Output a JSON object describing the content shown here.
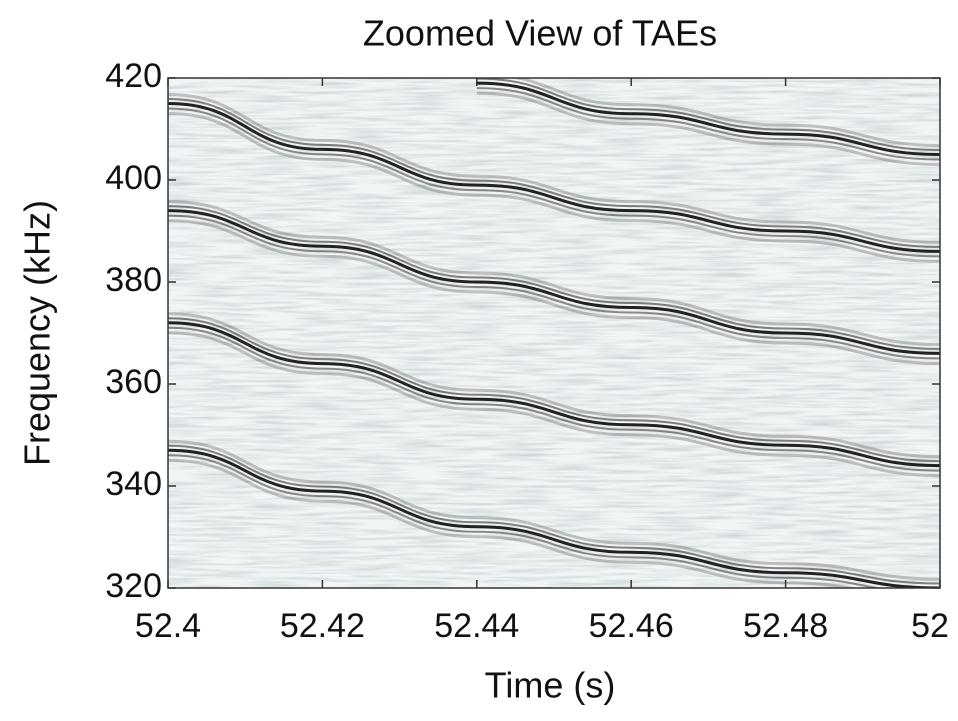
{
  "chart_data": {
    "type": "line",
    "title": "Zoomed View of TAEs",
    "x_label": "Time (s)",
    "y_label": "Frequency (kHz)",
    "x": [
      52.4,
      52.42,
      52.44,
      52.46,
      52.48,
      52.5
    ],
    "series": [
      {
        "color": "#222222",
        "values": [
          347,
          339,
          332,
          327,
          323,
          320
        ]
      },
      {
        "color": "#222222",
        "values": [
          372,
          364,
          357,
          352,
          348,
          344
        ]
      },
      {
        "color": "#222222",
        "values": [
          394,
          387,
          380,
          375,
          370,
          366
        ]
      },
      {
        "color": "#222222",
        "values": [
          415,
          406,
          399,
          394,
          390,
          386
        ]
      },
      {
        "color": "#222222",
        "values": [
          null,
          null,
          419,
          413,
          409,
          405
        ]
      }
    ],
    "xlim": [
      52.4,
      52.5
    ],
    "ylim": [
      320,
      420
    ],
    "xticks": [
      52.4,
      52.42,
      52.44,
      52.46,
      52.48,
      {
        "value": 52.5,
        "label": "52"
      }
    ],
    "yticks": [
      320,
      340,
      360,
      380,
      400,
      420
    ]
  }
}
